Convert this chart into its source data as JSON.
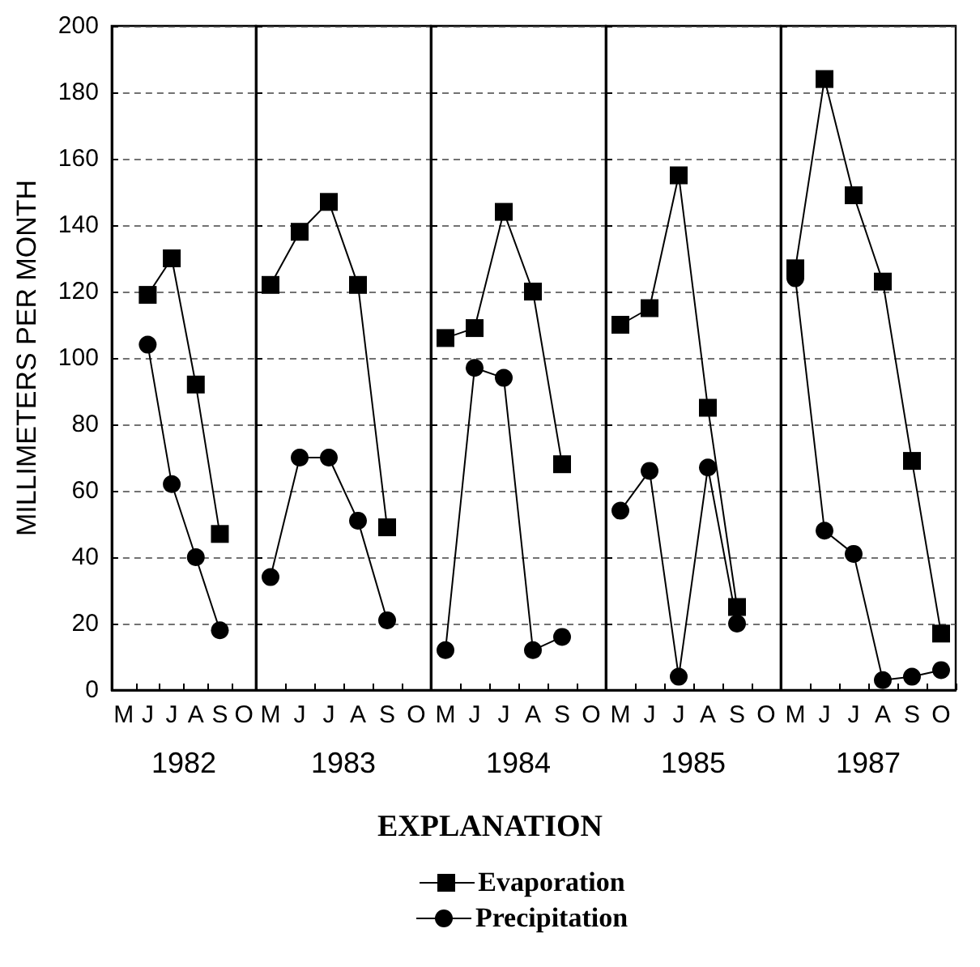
{
  "chart_data": [
    {
      "type": "line",
      "xlabel": "1982",
      "ylabel": "MILLIMETERS PER MONTH",
      "legend_title": "EXPLANATION",
      "legend": "bottom",
      "categories": [
        "M",
        "J",
        "J",
        "A",
        "S",
        "O"
      ],
      "ylim": [
        0,
        200
      ],
      "yticks": [
        0,
        20,
        40,
        60,
        80,
        100,
        120,
        140,
        160,
        180,
        200
      ],
      "grid": "y",
      "series": [
        {
          "name": "Evaporation",
          "color": "#000000",
          "marker": "square",
          "values": [
            null,
            119,
            130,
            92,
            47,
            null
          ]
        },
        {
          "name": "Precipitation",
          "color": "#000000",
          "marker": "circle",
          "values": [
            null,
            104,
            62,
            40,
            18,
            null
          ]
        }
      ]
    },
    {
      "type": "line",
      "xlabel": "1983",
      "categories": [
        "M",
        "J",
        "J",
        "A",
        "S",
        "O"
      ],
      "ylim": [
        0,
        200
      ],
      "yticks": [
        0,
        20,
        40,
        60,
        80,
        100,
        120,
        140,
        160,
        180,
        200
      ],
      "grid": "y",
      "tick_labels": "x",
      "series": [
        {
          "color": "#000000",
          "marker": "square",
          "values": [
            122,
            138,
            147,
            122,
            49,
            null
          ]
        },
        {
          "color": "#000000",
          "marker": "circle",
          "values": [
            34,
            70,
            70,
            51,
            21,
            null
          ]
        }
      ]
    },
    {
      "type": "line",
      "xlabel": "1984",
      "categories": [
        "M",
        "J",
        "J",
        "A",
        "S",
        "O"
      ],
      "ylim": [
        0,
        200
      ],
      "yticks": [
        0,
        20,
        40,
        60,
        80,
        100,
        120,
        140,
        160,
        180,
        200
      ],
      "grid": "y",
      "tick_labels": "x",
      "series": [
        {
          "color": "#000000",
          "marker": "square",
          "values": [
            106,
            109,
            144,
            120,
            68,
            null
          ]
        },
        {
          "color": "#000000",
          "marker": "circle",
          "values": [
            12,
            97,
            94,
            12,
            16,
            null
          ]
        }
      ]
    },
    {
      "type": "line",
      "xlabel": "1985",
      "categories": [
        "M",
        "J",
        "J",
        "A",
        "S",
        "O"
      ],
      "ylim": [
        0,
        200
      ],
      "yticks": [
        0,
        20,
        40,
        60,
        80,
        100,
        120,
        140,
        160,
        180,
        200
      ],
      "grid": "y",
      "tick_labels": "x",
      "series": [
        {
          "color": "#000000",
          "marker": "square",
          "values": [
            110,
            115,
            155,
            85,
            25,
            null
          ]
        },
        {
          "color": "#000000",
          "marker": "circle",
          "values": [
            54,
            66,
            4,
            67,
            20,
            null
          ]
        }
      ]
    },
    {
      "type": "line",
      "xlabel": "1987",
      "categories": [
        "M",
        "J",
        "J",
        "A",
        "S",
        "O"
      ],
      "ylim": [
        0,
        200
      ],
      "yticks": [
        0,
        20,
        40,
        60,
        80,
        100,
        120,
        140,
        160,
        180,
        200
      ],
      "grid": "y",
      "tick_labels": "x",
      "series": [
        {
          "color": "#000000",
          "marker": "square",
          "values": [
            127,
            184,
            149,
            123,
            69,
            17
          ]
        },
        {
          "color": "#000000",
          "marker": "circle",
          "values": [
            124,
            48,
            41,
            3,
            4,
            6
          ]
        }
      ]
    }
  ]
}
